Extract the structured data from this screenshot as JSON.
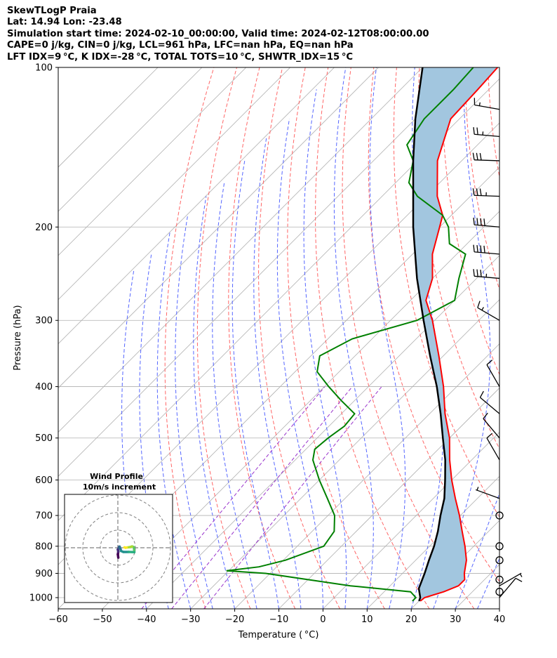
{
  "header": {
    "line1": "SkewTLogP Praia",
    "line2": "Lat: 14.94   Lon: -23.48",
    "line3": "Simulation start time: 2024-02-10_00:00:00, Valid time: 2024-02-12T08:00:00.00",
    "line4": "CAPE=0 j/kg, CIN=0 j/kg, LCL=961 hPa, LFC=nan hPa, EQ=nan hPa",
    "line5": "LFT IDX=9 °C, K IDX=-28 °C, TOTAL TOTS=10 °C, SHWTR_IDX=15 °C"
  },
  "colors": {
    "temperature": "#ff0000",
    "dewpoint": "#008000",
    "parcel": "#000000",
    "shade": "#a2c6df",
    "dry_adiabat": "#ff6666",
    "moist_adiabat": "#5566ff",
    "mixing_ratio": "#9933cc",
    "isotherm": "#b0b0b0"
  },
  "chart_data": {
    "type": "line",
    "subtype": "skew-t log-p",
    "xlabel": "Temperature ( °C)",
    "ylabel": "Pressure (hPa)",
    "xlim": [
      -60,
      40
    ],
    "ylim": [
      1050,
      100
    ],
    "x_ticks": [
      "−60",
      "−50",
      "−40",
      "−30",
      "−20",
      "−10",
      "0",
      "10",
      "20",
      "30",
      "40"
    ],
    "x_tick_values": [
      -60,
      -50,
      -40,
      -30,
      -20,
      -10,
      0,
      10,
      20,
      30,
      40
    ],
    "y_ticks": [
      "100",
      "200",
      "300",
      "400",
      "500",
      "600",
      "700",
      "800",
      "900",
      "1000"
    ],
    "y_tick_values": [
      100,
      200,
      300,
      400,
      500,
      600,
      700,
      800,
      900,
      1000
    ],
    "grid": true,
    "temperature": [
      {
        "p": 1015,
        "t": 20.3
      },
      {
        "p": 1000,
        "t": 20.5
      },
      {
        "p": 975,
        "t": 23.5
      },
      {
        "p": 950,
        "t": 25.5
      },
      {
        "p": 925,
        "t": 25.5
      },
      {
        "p": 900,
        "t": 24.0
      },
      {
        "p": 850,
        "t": 21.5
      },
      {
        "p": 800,
        "t": 18.0
      },
      {
        "p": 750,
        "t": 14.0
      },
      {
        "p": 700,
        "t": 9.8
      },
      {
        "p": 650,
        "t": 5.0
      },
      {
        "p": 600,
        "t": 0.0
      },
      {
        "p": 550,
        "t": -5.0
      },
      {
        "p": 500,
        "t": -10.0
      },
      {
        "p": 450,
        "t": -16.5
      },
      {
        "p": 400,
        "t": -23.0
      },
      {
        "p": 350,
        "t": -31.0
      },
      {
        "p": 300,
        "t": -40.5
      },
      {
        "p": 275,
        "t": -46.5
      },
      {
        "p": 250,
        "t": -50.0
      },
      {
        "p": 225,
        "t": -55.5
      },
      {
        "p": 200,
        "t": -60.0
      },
      {
        "p": 190,
        "t": -62.0
      },
      {
        "p": 175,
        "t": -67.5
      },
      {
        "p": 150,
        "t": -75.5
      },
      {
        "p": 125,
        "t": -82.0
      },
      {
        "p": 110,
        "t": -82.5
      },
      {
        "p": 100,
        "t": -83.0
      }
    ],
    "dewpoint": [
      {
        "p": 1015,
        "t": 18.5
      },
      {
        "p": 1000,
        "t": 18.5
      },
      {
        "p": 975,
        "t": 16.0
      },
      {
        "p": 950,
        "t": 1.0
      },
      {
        "p": 925,
        "t": -10.0
      },
      {
        "p": 900,
        "t": -21.0
      },
      {
        "p": 890,
        "t": -30.5
      },
      {
        "p": 875,
        "t": -24.0
      },
      {
        "p": 850,
        "t": -19.5
      },
      {
        "p": 800,
        "t": -14.0
      },
      {
        "p": 750,
        "t": -15.0
      },
      {
        "p": 700,
        "t": -18.5
      },
      {
        "p": 650,
        "t": -24.0
      },
      {
        "p": 600,
        "t": -30.0
      },
      {
        "p": 550,
        "t": -36.0
      },
      {
        "p": 525,
        "t": -38.0
      },
      {
        "p": 500,
        "t": -37.5
      },
      {
        "p": 475,
        "t": -36.5
      },
      {
        "p": 450,
        "t": -37.0
      },
      {
        "p": 425,
        "t": -43.0
      },
      {
        "p": 400,
        "t": -49.0
      },
      {
        "p": 375,
        "t": -55.0
      },
      {
        "p": 350,
        "t": -58.0
      },
      {
        "p": 325,
        "t": -54.5
      },
      {
        "p": 300,
        "t": -44.0
      },
      {
        "p": 275,
        "t": -40.0
      },
      {
        "p": 250,
        "t": -44.0
      },
      {
        "p": 225,
        "t": -48.0
      },
      {
        "p": 215,
        "t": -54.0
      },
      {
        "p": 200,
        "t": -58.0
      },
      {
        "p": 190,
        "t": -62.0
      },
      {
        "p": 175,
        "t": -72.0
      },
      {
        "p": 165,
        "t": -77.0
      },
      {
        "p": 150,
        "t": -81.0
      },
      {
        "p": 140,
        "t": -86.0
      },
      {
        "p": 125,
        "t": -88.0
      },
      {
        "p": 110,
        "t": -88.0
      },
      {
        "p": 100,
        "t": -88.5
      }
    ],
    "parcel": [
      {
        "p": 1015,
        "t": 20.0
      },
      {
        "p": 1000,
        "t": 19.5
      },
      {
        "p": 961,
        "t": 17.1
      },
      {
        "p": 900,
        "t": 15.0
      },
      {
        "p": 850,
        "t": 13.0
      },
      {
        "p": 800,
        "t": 11.0
      },
      {
        "p": 750,
        "t": 8.5
      },
      {
        "p": 700,
        "t": 5.5
      },
      {
        "p": 650,
        "t": 2.5
      },
      {
        "p": 600,
        "t": -1.5
      },
      {
        "p": 550,
        "t": -6.0
      },
      {
        "p": 500,
        "t": -11.5
      },
      {
        "p": 450,
        "t": -17.5
      },
      {
        "p": 400,
        "t": -24.5
      },
      {
        "p": 350,
        "t": -33.0
      },
      {
        "p": 300,
        "t": -42.5
      },
      {
        "p": 250,
        "t": -53.5
      },
      {
        "p": 200,
        "t": -66.0
      },
      {
        "p": 150,
        "t": -81.0
      },
      {
        "p": 125,
        "t": -90.0
      },
      {
        "p": 100,
        "t": -100.0
      }
    ],
    "wind_barbs": [
      {
        "p": 1000,
        "speed_kt": 10,
        "dir": 40
      },
      {
        "p": 975,
        "speed_kt": 0,
        "dir": 0
      },
      {
        "p": 950,
        "speed_kt": 5,
        "dir": 60
      },
      {
        "p": 925,
        "speed_kt": 0,
        "dir": 0
      },
      {
        "p": 850,
        "speed_kt": 0,
        "dir": 0
      },
      {
        "p": 800,
        "speed_kt": 0,
        "dir": 0
      },
      {
        "p": 700,
        "speed_kt": 0,
        "dir": 0
      },
      {
        "p": 650,
        "speed_kt": 5,
        "dir": 290
      },
      {
        "p": 550,
        "speed_kt": 10,
        "dir": 330
      },
      {
        "p": 500,
        "speed_kt": 10,
        "dir": 320
      },
      {
        "p": 450,
        "speed_kt": 10,
        "dir": 310
      },
      {
        "p": 400,
        "speed_kt": 10,
        "dir": 330
      },
      {
        "p": 300,
        "speed_kt": 15,
        "dir": 300
      },
      {
        "p": 250,
        "speed_kt": 35,
        "dir": 275
      },
      {
        "p": 225,
        "speed_kt": 40,
        "dir": 275
      },
      {
        "p": 200,
        "speed_kt": 40,
        "dir": 275
      },
      {
        "p": 175,
        "speed_kt": 35,
        "dir": 272
      },
      {
        "p": 150,
        "speed_kt": 30,
        "dir": 272
      },
      {
        "p": 135,
        "speed_kt": 25,
        "dir": 275
      },
      {
        "p": 120,
        "speed_kt": 15,
        "dir": 280
      }
    ],
    "hodograph": {
      "title": "Wind Profile",
      "subtitle": "10m/s increment",
      "rings": [
        10,
        20,
        30
      ],
      "points": [
        {
          "u": 0.2,
          "v": -4.5
        },
        {
          "u": 0.0,
          "v": -3.0
        },
        {
          "u": 0.2,
          "v": -1.8
        },
        {
          "u": 0.0,
          "v": -0.8
        },
        {
          "u": 0.4,
          "v": -0.3
        },
        {
          "u": 0.5,
          "v": 0.3
        },
        {
          "u": 0.8,
          "v": 0.5
        },
        {
          "u": 1.1,
          "v": -0.3
        },
        {
          "u": 1.5,
          "v": -1.5
        },
        {
          "u": 2.5,
          "v": -1.9
        },
        {
          "u": 5.0,
          "v": -1.9
        },
        {
          "u": 7.5,
          "v": -2.0
        },
        {
          "u": 7.5,
          "v": -1.0
        },
        {
          "u": 7.2,
          "v": 0.3
        },
        {
          "u": 6.5,
          "v": 0.6
        },
        {
          "u": 5.5,
          "v": 0.3
        },
        {
          "u": 4.0,
          "v": 0.1
        },
        {
          "u": 3.5,
          "v": 0.0
        },
        {
          "u": 3.0,
          "v": 0.2
        }
      ]
    }
  }
}
